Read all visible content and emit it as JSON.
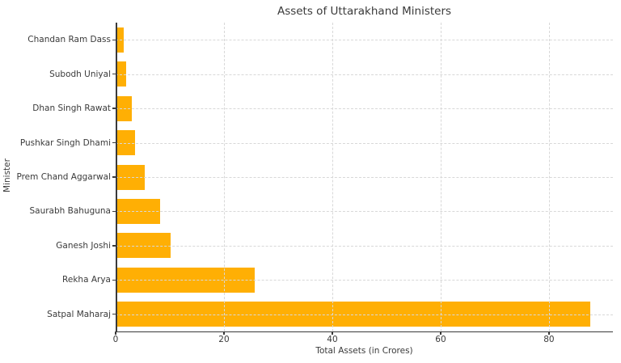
{
  "chart_data": {
    "type": "bar",
    "orientation": "horizontal",
    "title": "Assets of Uttarakhand Ministers",
    "xlabel": "Total Assets (in Crores)",
    "ylabel": "Minister",
    "categories": [
      "Chandan Ram Dass",
      "Subodh Uniyal",
      "Dhan Singh Rawat",
      "Pushkar Singh Dhami",
      "Prem Chand Aggarwal",
      "Saurabh Bahuguna",
      "Ganesh Joshi",
      "Rekha Arya",
      "Satpal Maharaj"
    ],
    "values": [
      1.3,
      1.8,
      2.8,
      3.4,
      5.2,
      8.0,
      10.0,
      25.5,
      87.5
    ],
    "xticks": [
      0,
      20,
      40,
      60,
      80
    ],
    "xlim": [
      0,
      91.8
    ],
    "grid": true,
    "grid_style": "dashed",
    "legend_position": "none",
    "bar_color": "#FFAF04",
    "grid_color": "#d8d8d8",
    "axis_color": "#3a3a3a",
    "text_color": "#3a3a3a",
    "background_color": "#ffffff"
  }
}
